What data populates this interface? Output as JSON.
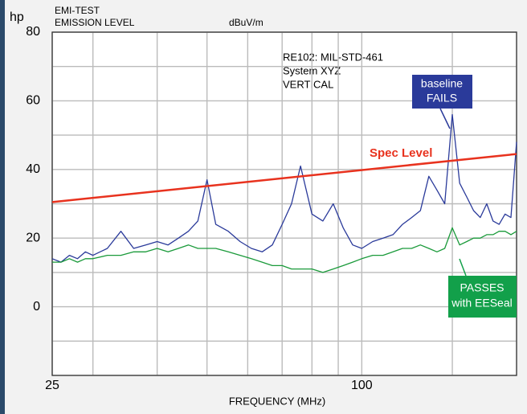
{
  "chart_data": {
    "type": "line",
    "title_lines": [
      "EMI-TEST",
      "EMISSION LEVEL"
    ],
    "y_unit": "dBuV/m",
    "corner_label": "hp",
    "info_lines": [
      "RE102: MIL-STD-461",
      "System XYZ",
      "VERTICAL"
    ],
    "x_label": "FREQUENCY (MHz)",
    "x_log": true,
    "xlim": [
      25,
      200
    ],
    "xticks": [
      25,
      100
    ],
    "x_minor_ticks": [
      30,
      40,
      50,
      60,
      70,
      80,
      90,
      150
    ],
    "ylim": [
      -20,
      80
    ],
    "yticks": [
      0,
      20,
      40,
      60,
      80
    ],
    "y_minor_ticks": [
      -10,
      10,
      30,
      50,
      70
    ],
    "grid": true,
    "x": [
      25,
      26,
      27,
      28,
      29,
      30,
      32,
      34,
      36,
      38,
      40,
      42,
      44,
      46,
      48,
      50,
      52,
      55,
      58,
      61,
      64,
      67,
      70,
      73,
      76,
      80,
      84,
      88,
      92,
      96,
      100,
      105,
      110,
      115,
      120,
      125,
      130,
      135,
      140,
      145,
      150,
      155,
      160,
      165,
      170,
      175,
      180,
      185,
      190,
      195,
      200
    ],
    "series": [
      {
        "color": "#2a3a9a",
        "values": [
          14,
          13,
          15,
          14,
          16,
          15,
          17,
          22,
          17,
          18,
          19,
          18,
          20,
          22,
          25,
          37,
          24,
          22,
          19,
          17,
          16,
          18,
          24,
          30,
          41,
          27,
          25,
          30,
          23,
          18,
          17,
          19,
          20,
          21,
          24,
          26,
          28,
          38,
          34,
          30,
          56,
          36,
          32,
          28,
          26,
          30,
          25,
          24,
          27,
          26,
          48
        ]
      },
      {
        "color": "#1a9a3a",
        "values": [
          13,
          13,
          14,
          13,
          14,
          14,
          15,
          15,
          16,
          16,
          17,
          16,
          17,
          18,
          17,
          17,
          17,
          16,
          15,
          14,
          13,
          12,
          12,
          11,
          11,
          11,
          10,
          11,
          12,
          13,
          14,
          15,
          15,
          16,
          17,
          17,
          18,
          17,
          16,
          17,
          23,
          18,
          19,
          20,
          20,
          21,
          21,
          22,
          22,
          21,
          22
        ]
      },
      {
        "color": "#e8321e",
        "x": [
          25,
          200
        ],
        "values": [
          30.5,
          44.5
        ]
      }
    ],
    "annotations": [
      {
        "lines": [
          "baseline",
          "FAILS"
        ],
        "color": "#2a3a9a"
      },
      {
        "lines": [
          "Spec Level"
        ],
        "color": "#e8321e"
      },
      {
        "lines": [
          "PASSES",
          "with EESeal"
        ],
        "color": "#12a04a"
      }
    ]
  }
}
